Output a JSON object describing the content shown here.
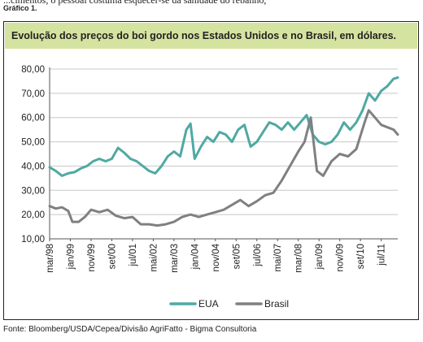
{
  "page": {
    "cut_text": "...cimentos, o pessoal costuma esquecer-se da sanidade do rebanho,",
    "chart_number": "Gráfico 1.",
    "title": "Evolução dos preços do boi gordo nos Estados Unidos e no Brasil, em dólares.",
    "source": "Fonte: Bloomberg/USDA/Cepea/Divisão AgriFatto - Bigma Consultoria"
  },
  "chart_data": {
    "type": "line",
    "title": "Evolução dos preços do boi gordo nos Estados Unidos e no Brasil, em dólares.",
    "xlabel": "",
    "ylabel": "",
    "ylim": [
      10,
      80
    ],
    "yticks": [
      "10,00",
      "20,00",
      "30,00",
      "40,00",
      "50,00",
      "60,00",
      "70,00",
      "80,00"
    ],
    "xlim": [
      "1998-03",
      "2012-03"
    ],
    "xticks": [
      "mar/98",
      "jan/99",
      "nov/99",
      "set/00",
      "jul/01",
      "mai/02",
      "mar/03",
      "jan/04",
      "nov/04",
      "set/05",
      "jul/06",
      "mai/07",
      "mar/08",
      "jan/09",
      "nov/09",
      "set/10",
      "jul/11"
    ],
    "grid": "horizontal",
    "legend_position": "bottom",
    "series": [
      {
        "name": "EUA",
        "color": "#4fa9a2",
        "points": [
          [
            "1998-03",
            39.5
          ],
          [
            "1998-06",
            38.0
          ],
          [
            "1998-09",
            36.0
          ],
          [
            "1998-12",
            37.0
          ],
          [
            "1999-03",
            37.5
          ],
          [
            "1999-06",
            39.0
          ],
          [
            "1999-09",
            40.0
          ],
          [
            "1999-12",
            42.0
          ],
          [
            "2000-03",
            43.0
          ],
          [
            "2000-06",
            42.0
          ],
          [
            "2000-09",
            43.0
          ],
          [
            "2000-12",
            47.5
          ],
          [
            "2001-03",
            45.5
          ],
          [
            "2001-06",
            43.0
          ],
          [
            "2001-09",
            42.0
          ],
          [
            "2001-12",
            40.0
          ],
          [
            "2002-03",
            38.0
          ],
          [
            "2002-06",
            37.0
          ],
          [
            "2002-09",
            40.0
          ],
          [
            "2002-12",
            44.0
          ],
          [
            "2003-03",
            46.0
          ],
          [
            "2003-06",
            44.0
          ],
          [
            "2003-09",
            55.0
          ],
          [
            "2003-11",
            57.5
          ],
          [
            "2004-01",
            43.0
          ],
          [
            "2004-04",
            48.0
          ],
          [
            "2004-07",
            52.0
          ],
          [
            "2004-10",
            50.0
          ],
          [
            "2005-01",
            54.0
          ],
          [
            "2005-04",
            53.0
          ],
          [
            "2005-07",
            50.0
          ],
          [
            "2005-10",
            55.0
          ],
          [
            "2006-01",
            57.0
          ],
          [
            "2006-04",
            48.0
          ],
          [
            "2006-07",
            50.0
          ],
          [
            "2006-10",
            54.0
          ],
          [
            "2007-01",
            58.0
          ],
          [
            "2007-04",
            57.0
          ],
          [
            "2007-07",
            55.0
          ],
          [
            "2007-10",
            58.0
          ],
          [
            "2008-01",
            55.0
          ],
          [
            "2008-04",
            58.0
          ],
          [
            "2008-07",
            61.0
          ],
          [
            "2008-10",
            53.0
          ],
          [
            "2009-01",
            50.0
          ],
          [
            "2009-04",
            49.0
          ],
          [
            "2009-07",
            50.0
          ],
          [
            "2009-10",
            53.0
          ],
          [
            "2010-01",
            58.0
          ],
          [
            "2010-04",
            55.0
          ],
          [
            "2010-07",
            58.0
          ],
          [
            "2010-10",
            63.0
          ],
          [
            "2011-01",
            70.0
          ],
          [
            "2011-04",
            67.0
          ],
          [
            "2011-07",
            71.0
          ],
          [
            "2011-10",
            73.0
          ],
          [
            "2012-01",
            76.0
          ],
          [
            "2012-03",
            76.5
          ]
        ]
      },
      {
        "name": "Brasil",
        "color": "#808080",
        "points": [
          [
            "1998-03",
            23.5
          ],
          [
            "1998-06",
            22.5
          ],
          [
            "1998-09",
            23.0
          ],
          [
            "1998-12",
            21.5
          ],
          [
            "1999-02",
            17.0
          ],
          [
            "1999-05",
            17.0
          ],
          [
            "1999-08",
            19.0
          ],
          [
            "1999-11",
            22.0
          ],
          [
            "2000-03",
            21.0
          ],
          [
            "2000-07",
            22.0
          ],
          [
            "2000-11",
            19.5
          ],
          [
            "2001-03",
            18.5
          ],
          [
            "2001-07",
            19.0
          ],
          [
            "2001-11",
            16.0
          ],
          [
            "2002-03",
            16.0
          ],
          [
            "2002-07",
            15.5
          ],
          [
            "2002-11",
            16.0
          ],
          [
            "2003-03",
            17.0
          ],
          [
            "2003-07",
            19.0
          ],
          [
            "2003-11",
            20.0
          ],
          [
            "2004-03",
            19.0
          ],
          [
            "2004-07",
            20.0
          ],
          [
            "2004-11",
            21.0
          ],
          [
            "2005-03",
            22.0
          ],
          [
            "2005-07",
            24.0
          ],
          [
            "2005-11",
            26.0
          ],
          [
            "2006-03",
            23.5
          ],
          [
            "2006-07",
            25.5
          ],
          [
            "2006-11",
            28.0
          ],
          [
            "2007-03",
            29.0
          ],
          [
            "2007-07",
            34.0
          ],
          [
            "2007-11",
            40.0
          ],
          [
            "2008-03",
            46.0
          ],
          [
            "2008-06",
            50.0
          ],
          [
            "2008-09",
            60.0
          ],
          [
            "2008-12",
            38.0
          ],
          [
            "2009-03",
            36.0
          ],
          [
            "2009-07",
            42.0
          ],
          [
            "2009-11",
            45.0
          ],
          [
            "2010-03",
            44.0
          ],
          [
            "2010-07",
            47.0
          ],
          [
            "2010-11",
            58.0
          ],
          [
            "2011-01",
            63.0
          ],
          [
            "2011-04",
            60.0
          ],
          [
            "2011-07",
            57.0
          ],
          [
            "2011-10",
            56.0
          ],
          [
            "2012-01",
            55.0
          ],
          [
            "2012-03",
            53.0
          ]
        ]
      }
    ]
  }
}
